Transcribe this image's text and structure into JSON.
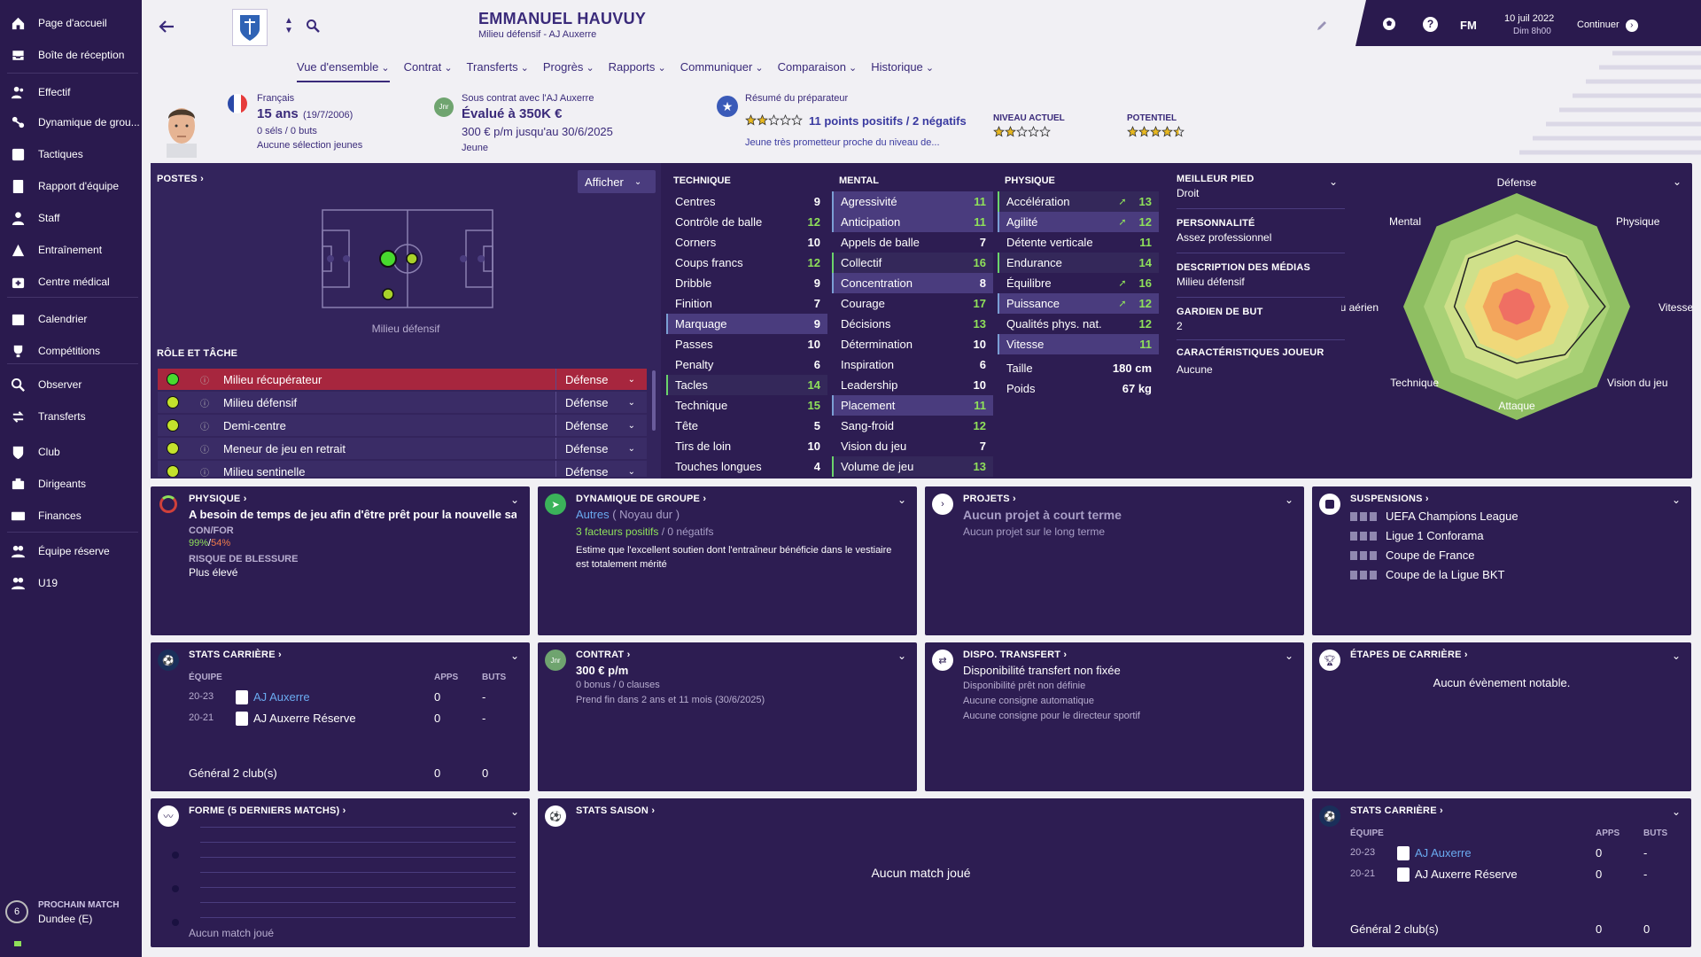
{
  "sidebar": {
    "items": [
      {
        "label": "Page d'accueil",
        "icon": "home-icon"
      },
      {
        "label": "Boîte de réception",
        "icon": "inbox-icon"
      },
      {
        "label": "Effectif",
        "icon": "people-icon"
      },
      {
        "label": "Dynamique de grou...",
        "icon": "dynamics-icon"
      },
      {
        "label": "Tactiques",
        "icon": "tactics-icon"
      },
      {
        "label": "Rapport d'équipe",
        "icon": "report-icon"
      },
      {
        "label": "Staff",
        "icon": "staff-icon"
      },
      {
        "label": "Entraînement",
        "icon": "training-icon"
      },
      {
        "label": "Centre médical",
        "icon": "medical-icon"
      },
      {
        "label": "Calendrier",
        "icon": "calendar-icon"
      },
      {
        "label": "Compétitions",
        "icon": "trophy-icon"
      },
      {
        "label": "Observer",
        "icon": "scout-icon"
      },
      {
        "label": "Transferts",
        "icon": "transfers-icon"
      },
      {
        "label": "Club",
        "icon": "club-icon"
      },
      {
        "label": "Dirigeants",
        "icon": "board-icon"
      },
      {
        "label": "Finances",
        "icon": "finances-icon"
      },
      {
        "label": "Équipe réserve",
        "icon": "reserve-icon"
      },
      {
        "label": "U19",
        "icon": "u19-icon"
      }
    ],
    "next_match": {
      "title": "PROCHAIN MATCH",
      "opponent": "Dundee (E)",
      "days": "6"
    }
  },
  "header": {
    "name": "EMMANUEL HAUVUY",
    "subtitle": "Milieu défensif - AJ Auxerre",
    "date": "10 juil 2022",
    "time": "Dim 8h00",
    "continue": "Continuer",
    "fm": "FM"
  },
  "tabs": [
    "Vue d'ensemble",
    "Contrat",
    "Transferts",
    "Progrès",
    "Rapports",
    "Communiquer",
    "Comparaison",
    "Historique"
  ],
  "profile": {
    "nationality": "Français",
    "age": "15 ans",
    "dob": "(19/7/2006)",
    "caps": "0 séls / 0 buts",
    "youth": "Aucune sélection jeunes",
    "contract_club": "Sous contrat avec l'AJ Auxerre",
    "value": "Évalué à 350K €",
    "wage": "300 € p/m jusqu'au 30/6/2025",
    "status": "Jeune",
    "coach_title": "Résumé du préparateur",
    "coach_points": "11 points positifs / 2 négatifs",
    "coach_desc": "Jeune très prometteur proche du niveau de...",
    "current_label": "NIVEAU ACTUEL",
    "potential_label": "POTENTIEL",
    "current_stars": 2,
    "potential_stars": 4.5
  },
  "positions": {
    "title": "POSTES",
    "show_btn": "Afficher",
    "pos_label": "Milieu défensif",
    "role_title": "RÔLE ET TÂCHE",
    "roles": [
      {
        "name": "Milieu récupérateur",
        "duty": "Défense"
      },
      {
        "name": "Milieu défensif",
        "duty": "Défense"
      },
      {
        "name": "Demi-centre",
        "duty": "Défense"
      },
      {
        "name": "Meneur de jeu en retrait",
        "duty": "Défense"
      },
      {
        "name": "Milieu sentinelle",
        "duty": "Défense"
      }
    ]
  },
  "attributes": {
    "technique": {
      "title": "TECHNIQUE",
      "rows": [
        [
          "Centres",
          "9"
        ],
        [
          "Contrôle de balle",
          "12"
        ],
        [
          "Corners",
          "10"
        ],
        [
          "Coups francs",
          "12"
        ],
        [
          "Dribble",
          "9"
        ],
        [
          "Finition",
          "7"
        ],
        [
          "Marquage",
          "9"
        ],
        [
          "Passes",
          "10"
        ],
        [
          "Penalty",
          "6"
        ],
        [
          "Tacles",
          "14"
        ],
        [
          "Technique",
          "15"
        ],
        [
          "Tête",
          "5"
        ],
        [
          "Tirs de loin",
          "10"
        ],
        [
          "Touches longues",
          "4"
        ]
      ]
    },
    "mental": {
      "title": "MENTAL",
      "rows": [
        [
          "Agressivité",
          "11"
        ],
        [
          "Anticipation",
          "11"
        ],
        [
          "Appels de balle",
          "7"
        ],
        [
          "Collectif",
          "16"
        ],
        [
          "Concentration",
          "8"
        ],
        [
          "Courage",
          "17"
        ],
        [
          "Décisions",
          "13"
        ],
        [
          "Détermination",
          "10"
        ],
        [
          "Inspiration",
          "6"
        ],
        [
          "Leadership",
          "10"
        ],
        [
          "Placement",
          "11"
        ],
        [
          "Sang-froid",
          "12"
        ],
        [
          "Vision du jeu",
          "7"
        ],
        [
          "Volume de jeu",
          "13"
        ]
      ]
    },
    "physique": {
      "title": "PHYSIQUE",
      "rows": [
        [
          "Accélération",
          "13"
        ],
        [
          "Agilité",
          "12"
        ],
        [
          "Détente verticale",
          "11"
        ],
        [
          "Endurance",
          "14"
        ],
        [
          "Équilibre",
          "16"
        ],
        [
          "Puissance",
          "12"
        ],
        [
          "Qualités phys. nat.",
          "12"
        ],
        [
          "Vitesse",
          "11"
        ]
      ],
      "height_label": "Taille",
      "height": "180 cm",
      "weight_label": "Poids",
      "weight": "67 kg"
    }
  },
  "info": {
    "foot_title": "MEILLEUR PIED",
    "foot": "Droit",
    "pers_title": "PERSONNALITÉ",
    "pers": "Assez professionnel",
    "media_title": "DESCRIPTION DES MÉDIAS",
    "media": "Milieu défensif",
    "gk_title": "GARDIEN DE BUT",
    "gk": "2",
    "traits_title": "CARACTÉRISTIQUES JOUEUR",
    "traits": "Aucune"
  },
  "radar": {
    "labels": [
      "Défense",
      "Physique",
      "Vitesse",
      "Vision du jeu",
      "Attaque",
      "Technique",
      "Jeu aérien",
      "Mental"
    ],
    "values": [
      0.58,
      0.62,
      0.78,
      0.6,
      0.5,
      0.5,
      0.55,
      0.6
    ]
  },
  "cards": {
    "physique": {
      "title": "PHYSIQUE",
      "headline": "A besoin de temps de jeu afin d'être prêt pour la nouvelle sa...",
      "confor_label": "CON/FOR",
      "con": "99%",
      "for": "54%",
      "injury_label": "RISQUE DE BLESSURE",
      "injury": "Plus élevé"
    },
    "dynamics": {
      "title": "DYNAMIQUE DE GROUPE",
      "group": "Autres",
      "core": "( Noyau dur )",
      "positive": "3 facteurs positifs",
      "negative": "0 négatifs",
      "desc": "Estime que l'excellent soutien dont l'entraîneur bénéficie dans le vestiaire est totalement mérité"
    },
    "projects": {
      "title": "PROJETS",
      "short": "Aucun projet à court terme",
      "long": "Aucun projet sur le long terme"
    },
    "suspensions": {
      "title": "SUSPENSIONS",
      "items": [
        "UEFA Champions League",
        "Ligue 1 Conforama",
        "Coupe de France",
        "Coupe de la Ligue BKT"
      ]
    },
    "career": {
      "title": "STATS CARRIÈRE",
      "h_team": "ÉQUIPE",
      "h_apps": "APPS",
      "h_goals": "BUTS",
      "rows": [
        {
          "season": "20-23",
          "team": "AJ Auxerre",
          "apps": "0",
          "goals": "-"
        },
        {
          "season": "20-21",
          "team": "AJ Auxerre Réserve",
          "apps": "0",
          "goals": "-"
        }
      ],
      "total_label": "Général 2 club(s)",
      "total_apps": "0",
      "total_goals": "0"
    },
    "contract": {
      "title": "CONTRAT",
      "wage": "300 € p/m",
      "bonus": "0 bonus / 0 clauses",
      "end": "Prend fin dans 2 ans et 11 mois (30/6/2025)"
    },
    "transfer": {
      "title": "DISPO. TRANSFERT",
      "status": "Disponibilité transfert non fixée",
      "l1": "Disponibilité prêt non définie",
      "l2": "Aucune consigne automatique",
      "l3": "Aucune consigne pour le directeur sportif"
    },
    "milestones": {
      "title": "ÉTAPES DE CARRIÈRE",
      "text": "Aucun évènement notable."
    },
    "form": {
      "title": "FORME (5 DERNIERS MATCHS)",
      "empty": "Aucun match joué"
    },
    "season": {
      "title": "STATS SAISON",
      "empty": "Aucun match joué"
    }
  }
}
